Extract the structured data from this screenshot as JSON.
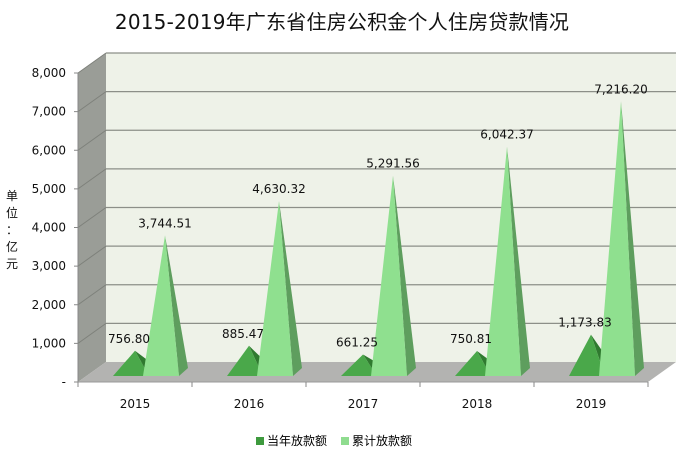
{
  "title": "2015-2019年广东省住房公积金个人住房贷款情况",
  "y_unit_label": [
    "单",
    "位",
    "：",
    "亿",
    "元"
  ],
  "legend": [
    {
      "label": "当年放款额",
      "color": "#3e9a3e"
    },
    {
      "label": "累计放款额",
      "color": "#8fdc8f"
    }
  ],
  "colors": {
    "back_wall": "#eef2e8",
    "side_wall": "#9a9d97",
    "floor": "#b3b3b1",
    "gridline": "#8c8f88",
    "dark_front": "#4aa84a",
    "dark_side": "#2f7a2f",
    "light_front": "#8fe08f",
    "light_side": "#5e9e5e"
  },
  "chart_data": {
    "type": "bar",
    "subtype": "3d-pyramid",
    "title": "2015-2019年广东省住房公积金个人住房贷款情况",
    "xlabel": "",
    "ylabel": "单位：亿元",
    "categories": [
      "2015",
      "2016",
      "2017",
      "2018",
      "2019"
    ],
    "series": [
      {
        "name": "当年放款额",
        "values": [
          756.8,
          885.47,
          661.25,
          750.81,
          1173.83
        ],
        "labels": [
          "756.80",
          "885.47",
          "661.25",
          "750.81",
          "1,173.83"
        ]
      },
      {
        "name": "累计放款额",
        "values": [
          3744.51,
          4630.32,
          5291.56,
          6042.37,
          7216.2
        ],
        "labels": [
          "3,744.51",
          "4,630.32",
          "5,291.56",
          "6,042.37",
          "7,216.20"
        ]
      }
    ],
    "ylim": [
      0,
      8000
    ],
    "yticks": [
      0,
      1000,
      2000,
      3000,
      4000,
      5000,
      6000,
      7000,
      8000
    ],
    "ytick_labels": [
      "-",
      "1,000",
      "2,000",
      "3,000",
      "4,000",
      "5,000",
      "6,000",
      "7,000",
      "8,000"
    ],
    "grid": true,
    "legend_position": "bottom"
  }
}
